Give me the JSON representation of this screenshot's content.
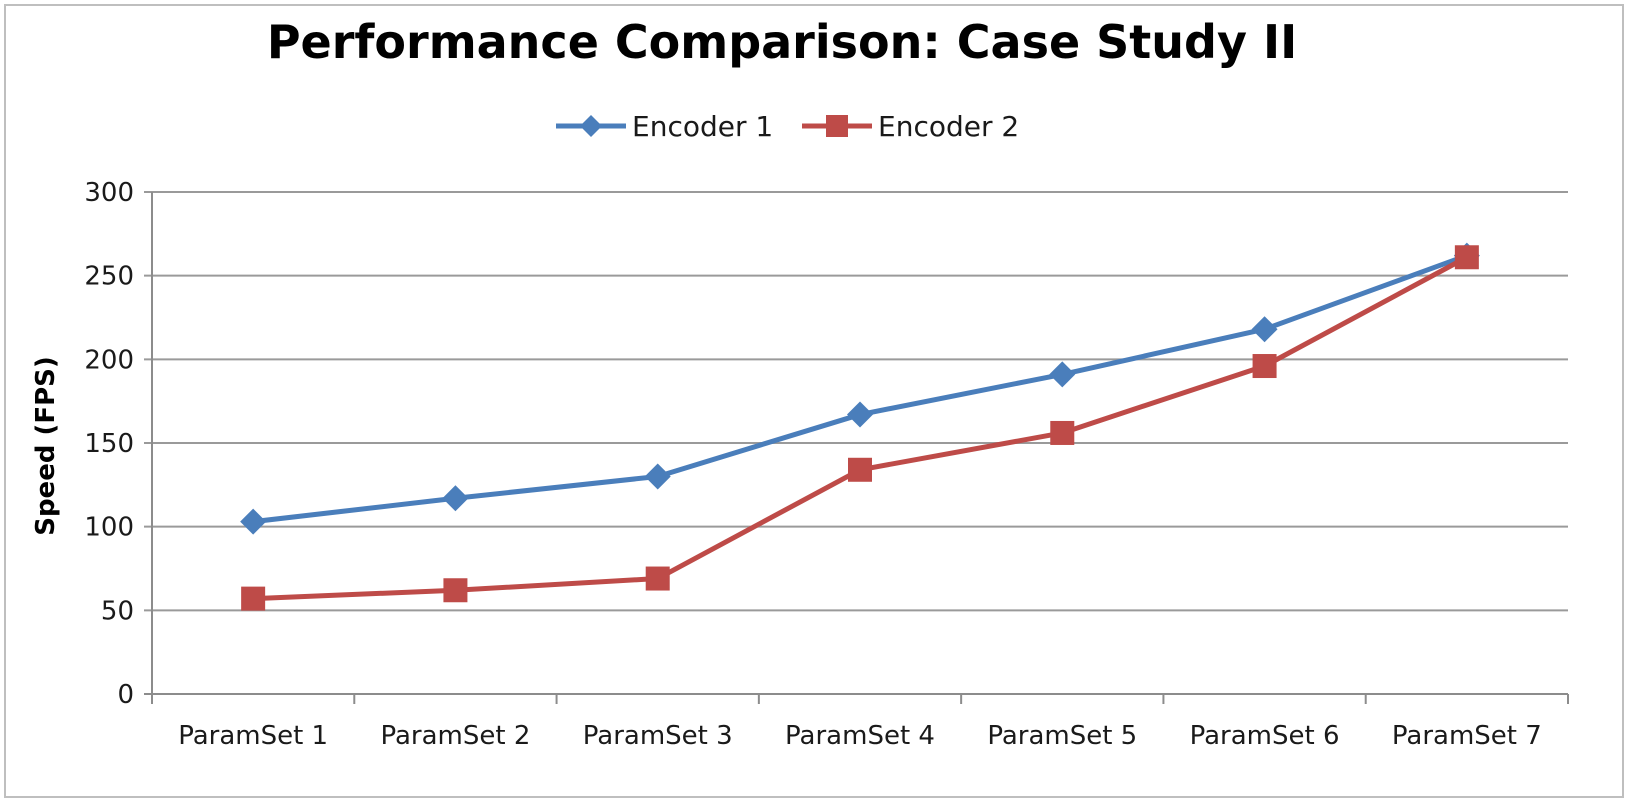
{
  "chart_data": {
    "type": "line",
    "title": "Performance Comparison: Case Study II",
    "xlabel": "",
    "ylabel": "Speed (FPS)",
    "categories": [
      "ParamSet 1",
      "ParamSet 2",
      "ParamSet 3",
      "ParamSet 4",
      "ParamSet 5",
      "ParamSet 6",
      "ParamSet 7"
    ],
    "ylim": [
      0,
      300
    ],
    "yticks": [
      0,
      50,
      100,
      150,
      200,
      250,
      300
    ],
    "grid": "horizontal",
    "legend_position": "top-center",
    "series": [
      {
        "name": "Encoder 1",
        "color": "#4a7ebb",
        "marker": "diamond",
        "values": [
          103,
          117,
          130,
          167,
          191,
          218,
          262
        ]
      },
      {
        "name": "Encoder 2",
        "color": "#be4b48",
        "marker": "square",
        "values": [
          57,
          62,
          69,
          134,
          156,
          196,
          261
        ]
      }
    ]
  }
}
